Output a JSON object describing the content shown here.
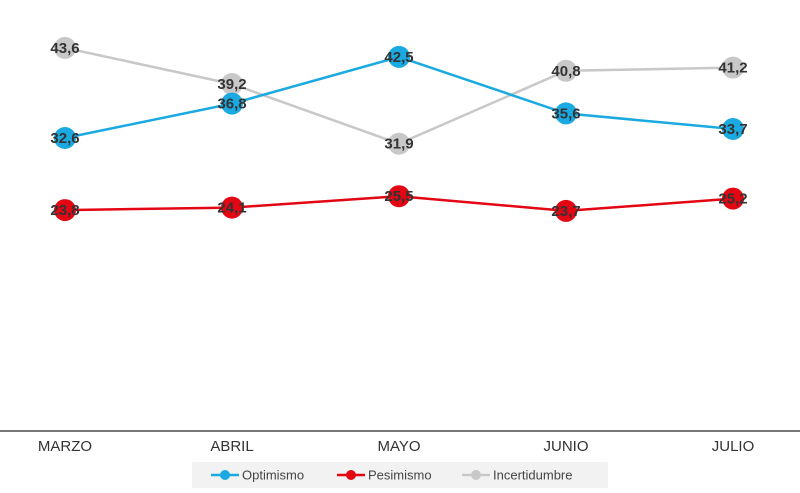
{
  "chart_data": {
    "type": "line",
    "categories": [
      "MARZO",
      "ABRIL",
      "MAYO",
      "JUNIO",
      "JULIO"
    ],
    "series": [
      {
        "name": "Optimismo",
        "color": "#1aa9e0",
        "values": [
          32.6,
          36.8,
          42.5,
          35.6,
          33.7
        ],
        "labels": [
          "32,6",
          "36,8",
          "42,5",
          "35,6",
          "33,7"
        ]
      },
      {
        "name": "Pesimismo",
        "color": "#e30613",
        "values": [
          23.8,
          24.1,
          25.5,
          23.7,
          25.2
        ],
        "labels": [
          "23,8",
          "24,1",
          "25,5",
          "23,7",
          "25,2"
        ]
      },
      {
        "name": "Incertidumbre",
        "color": "#c8c8c8",
        "values": [
          43.6,
          39.2,
          31.9,
          40.8,
          41.2
        ],
        "labels": [
          "43,6",
          "39,2",
          "31,9",
          "40,8",
          "41,2"
        ]
      }
    ],
    "grid": false,
    "legend_position": "bottom-center"
  }
}
